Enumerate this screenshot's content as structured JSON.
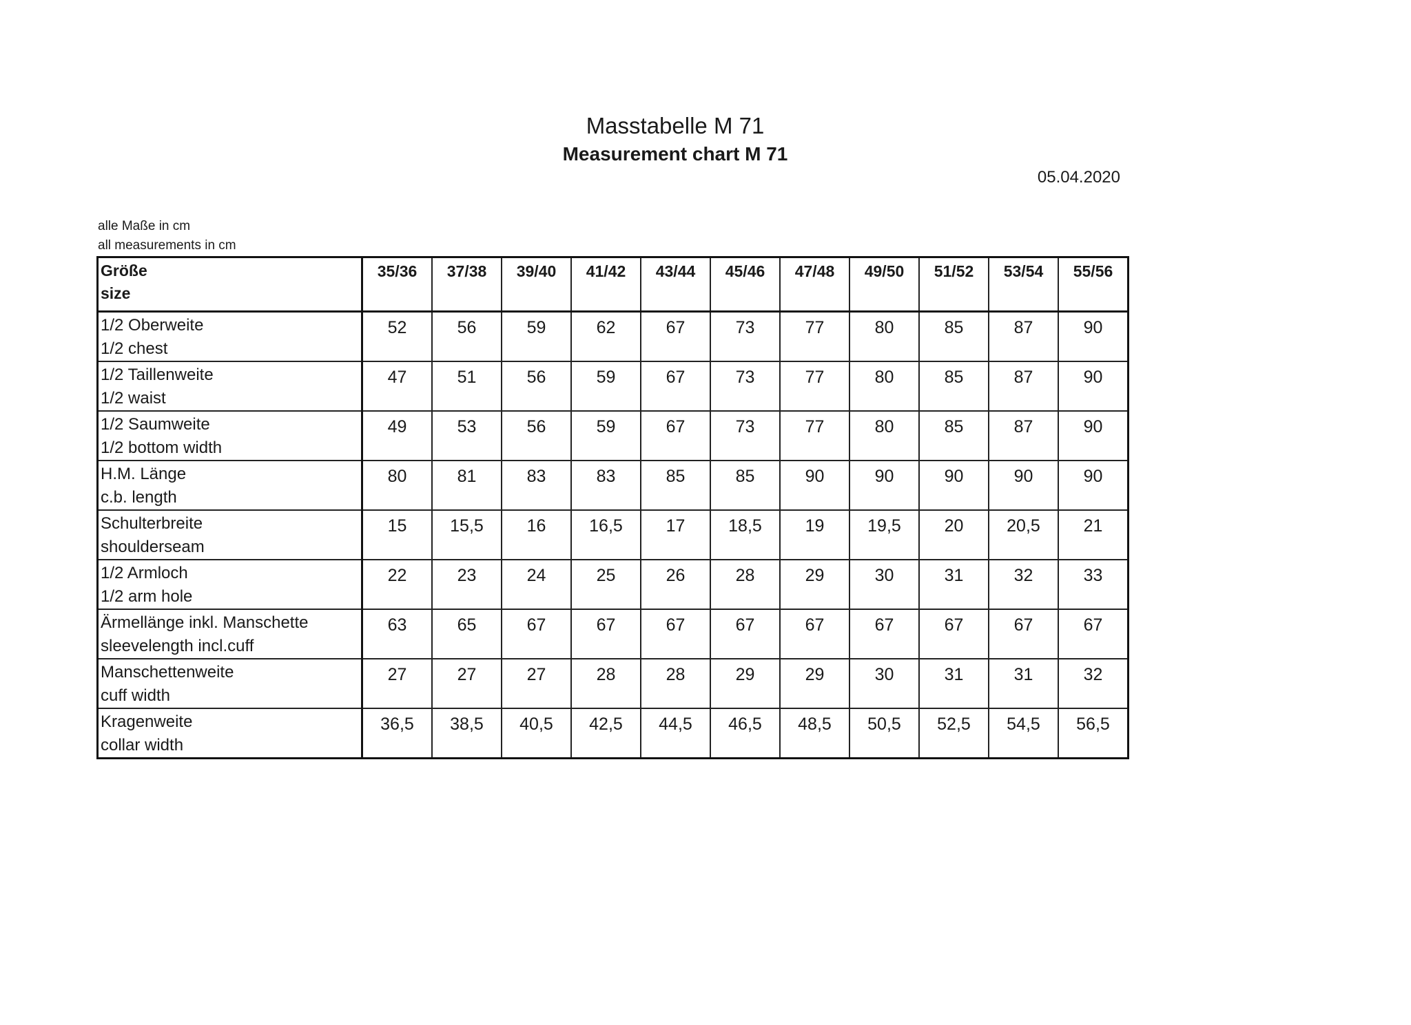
{
  "header": {
    "title": "Masstabelle M 71",
    "subtitle": "Measurement chart M 71",
    "date": "05.04.2020"
  },
  "notes": [
    "alle Maße in cm",
    "all measurements in cm"
  ],
  "table": {
    "size_label_de": "Größe",
    "size_label_en": "size",
    "sizes": [
      "35/36",
      "37/38",
      "39/40",
      "41/42",
      "43/44",
      "45/46",
      "47/48",
      "49/50",
      "51/52",
      "53/54",
      "55/56"
    ],
    "rows": [
      {
        "de": "1/2 Oberweite",
        "en": "1/2 chest",
        "values": [
          "52",
          "56",
          "59",
          "62",
          "67",
          "73",
          "77",
          "80",
          "85",
          "87",
          "90"
        ]
      },
      {
        "de": "1/2 Taillenweite",
        "en": "1/2 waist",
        "values": [
          "47",
          "51",
          "56",
          "59",
          "67",
          "73",
          "77",
          "80",
          "85",
          "87",
          "90"
        ]
      },
      {
        "de": "1/2 Saumweite",
        "en": "1/2 bottom width",
        "values": [
          "49",
          "53",
          "56",
          "59",
          "67",
          "73",
          "77",
          "80",
          "85",
          "87",
          "90"
        ]
      },
      {
        "de": "H.M. Länge",
        "en": "c.b. length",
        "values": [
          "80",
          "81",
          "83",
          "83",
          "85",
          "85",
          "90",
          "90",
          "90",
          "90",
          "90"
        ]
      },
      {
        "de": "Schulterbreite",
        "en": "shoulderseam",
        "values": [
          "15",
          "15,5",
          "16",
          "16,5",
          "17",
          "18,5",
          "19",
          "19,5",
          "20",
          "20,5",
          "21"
        ]
      },
      {
        "de": "1/2 Armloch",
        "en": "1/2 arm hole",
        "values": [
          "22",
          "23",
          "24",
          "25",
          "26",
          "28",
          "29",
          "30",
          "31",
          "32",
          "33"
        ]
      },
      {
        "de": "Ärmellänge inkl. Manschette",
        "en": "sleevelength incl.cuff",
        "values": [
          "63",
          "65",
          "67",
          "67",
          "67",
          "67",
          "67",
          "67",
          "67",
          "67",
          "67"
        ]
      },
      {
        "de": "Manschettenweite",
        "en": "cuff width",
        "values": [
          "27",
          "27",
          "27",
          "28",
          "28",
          "29",
          "29",
          "30",
          "31",
          "31",
          "32"
        ]
      },
      {
        "de": "Kragenweite",
        "en": "collar width",
        "values": [
          "36,5",
          "38,5",
          "40,5",
          "42,5",
          "44,5",
          "46,5",
          "48,5",
          "50,5",
          "52,5",
          "54,5",
          "56,5"
        ]
      }
    ]
  }
}
